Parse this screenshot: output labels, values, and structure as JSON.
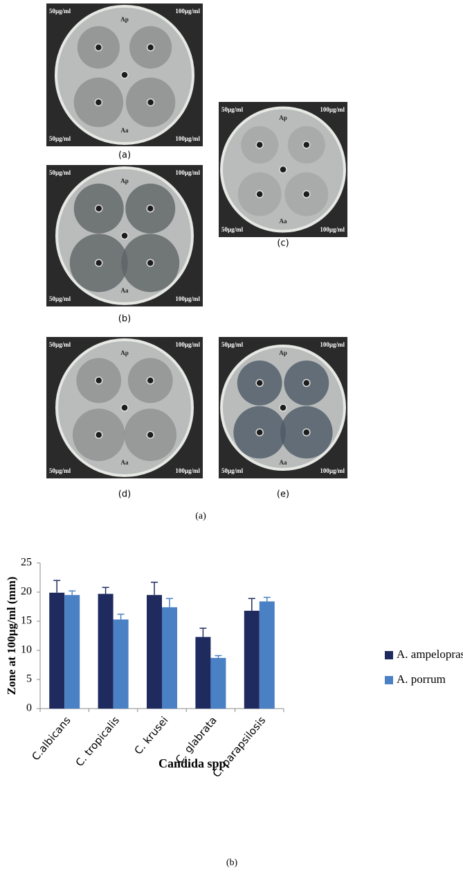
{
  "panels": [
    {
      "label": "(a)",
      "texts": [
        "50µg/ml",
        "Ap",
        "100µg/ml",
        "50µg/ml",
        "Aa",
        "100µg/ml"
      ]
    },
    {
      "label": "(b)",
      "texts": [
        "50µg/ml",
        "Ap",
        "100µg/ml",
        "50µg/ml",
        "Aa",
        "100µg/ml"
      ]
    },
    {
      "label": "(c)",
      "texts": [
        "50µg/ml",
        "Ap",
        "100µg/ml",
        "50µg/ml",
        "Aa",
        "100µg/ml"
      ]
    },
    {
      "label": "(d)",
      "texts": [
        "50µg/ml",
        "Ap",
        "100µg/ml",
        "50µg/ml",
        "Aa",
        "100µg/ml"
      ]
    },
    {
      "label": "(e)",
      "texts": [
        "50µg/ml",
        "Ap",
        "100µg/ml",
        "50µg/ml",
        "Aa",
        "100µg/ml"
      ]
    }
  ],
  "caption_a": "(a)",
  "chart_data": {
    "type": "bar",
    "ylabel": "Zone at 100µg/ml (mm)",
    "xlabel": "Candida spp.",
    "categories": [
      "C.albicans",
      "C. tropicalis",
      "C. krusei",
      "C. glabrata",
      "C. parapsilosis"
    ],
    "series": [
      {
        "name": "A. ampeloprasum",
        "color": "#1f2a5e",
        "values": [
          19.9,
          19.7,
          19.5,
          12.3,
          16.8
        ],
        "errors": [
          2.1,
          1.1,
          2.2,
          1.5,
          2.1
        ]
      },
      {
        "name": "A. porrum",
        "color": "#4a80c4",
        "values": [
          19.5,
          15.3,
          17.4,
          8.7,
          18.4
        ],
        "errors": [
          0.7,
          0.9,
          1.5,
          0.4,
          0.7
        ]
      }
    ],
    "ylim": [
      0,
      25
    ],
    "yticks": [
      0,
      5,
      10,
      15,
      20,
      25
    ],
    "legend": "right"
  },
  "caption_b": "(b)"
}
